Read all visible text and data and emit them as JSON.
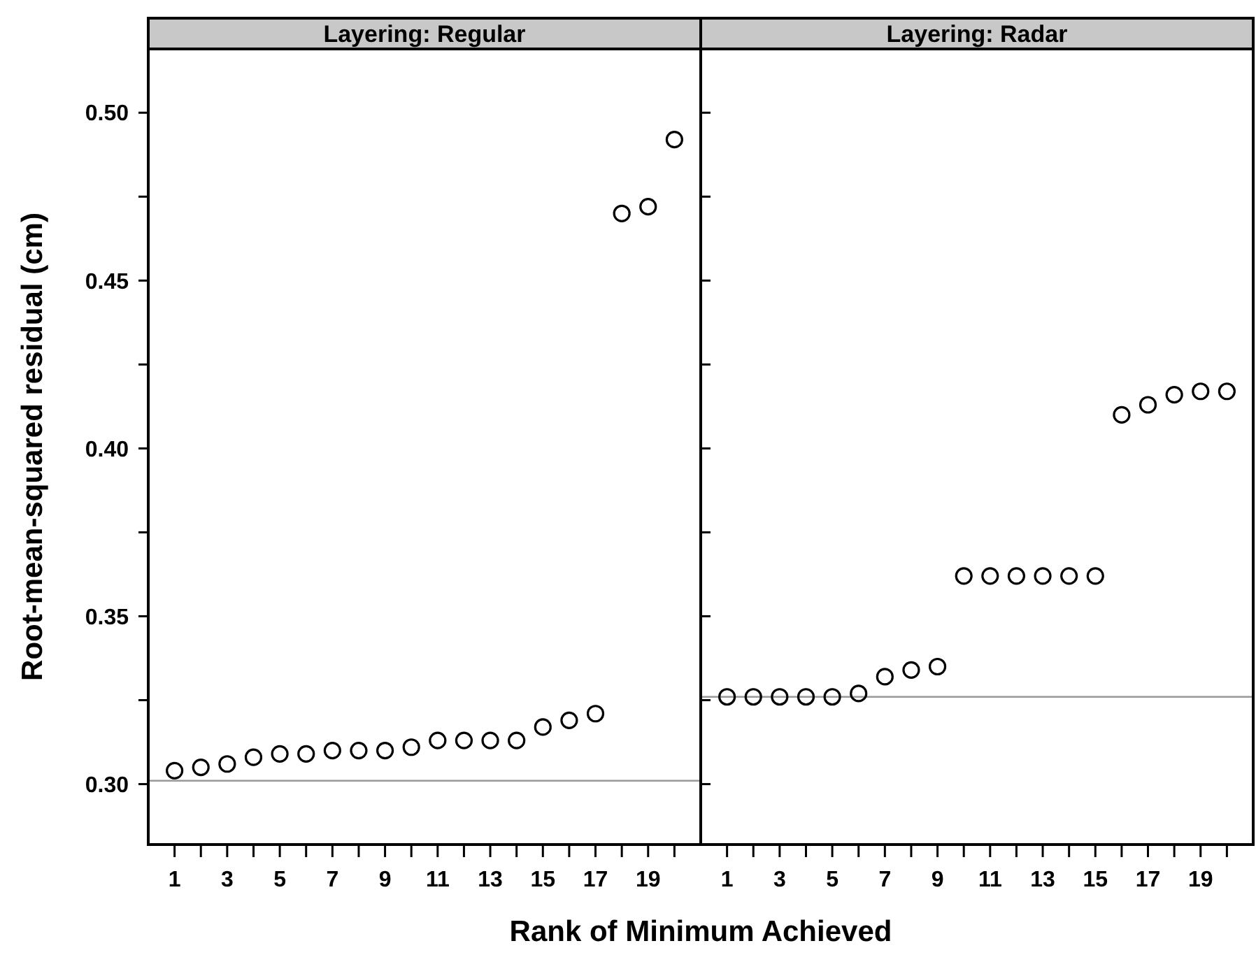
{
  "chart_data": [
    {
      "type": "scatter",
      "title": "Layering: Regular",
      "xlabel": "Rank of Minimum Achieved",
      "ylabel": "Root-mean-squared residual (cm)",
      "marker": "circle",
      "grid": false,
      "x": [
        1,
        2,
        3,
        4,
        5,
        6,
        7,
        8,
        9,
        10,
        11,
        12,
        13,
        14,
        15,
        16,
        17,
        18,
        19,
        20
      ],
      "series": [
        {
          "color": "#000000",
          "values": [
            0.304,
            0.305,
            0.306,
            0.308,
            0.309,
            0.309,
            0.31,
            0.31,
            0.31,
            0.311,
            0.313,
            0.313,
            0.313,
            0.313,
            0.317,
            0.319,
            0.321,
            0.47,
            0.472,
            0.492
          ]
        }
      ],
      "ref_lines": [
        {
          "axis": "y",
          "value": 0.301,
          "color": "#999999"
        }
      ],
      "xlim": [
        0,
        21
      ],
      "ylim": [
        0.282,
        0.519
      ],
      "xticks": [
        1,
        {
          "value": 2,
          "label": null
        },
        3,
        {
          "value": 4,
          "label": null
        },
        5,
        {
          "value": 6,
          "label": null
        },
        7,
        {
          "value": 8,
          "label": null
        },
        9,
        {
          "value": 10,
          "label": null
        },
        11,
        {
          "value": 12,
          "label": null
        },
        13,
        {
          "value": 14,
          "label": null
        },
        15,
        {
          "value": 16,
          "label": null
        },
        17,
        {
          "value": 18,
          "label": null
        },
        19,
        {
          "value": 20,
          "label": null
        }
      ],
      "yticks": [
        {
          "value": 0.3,
          "label": "0.30"
        },
        {
          "value": 0.325,
          "label": null
        },
        {
          "value": 0.35,
          "label": "0.35"
        },
        {
          "value": 0.375,
          "label": null
        },
        {
          "value": 0.4,
          "label": "0.40"
        },
        {
          "value": 0.425,
          "label": null
        },
        {
          "value": 0.45,
          "label": "0.45"
        },
        {
          "value": 0.475,
          "label": null
        },
        {
          "value": 0.5,
          "label": "0.50"
        }
      ]
    },
    {
      "type": "scatter",
      "title": "Layering: Radar",
      "marker": "circle",
      "grid": false,
      "tick_labels": "x",
      "x": [
        1,
        2,
        3,
        4,
        5,
        6,
        7,
        8,
        9,
        10,
        11,
        12,
        13,
        14,
        15,
        16,
        17,
        18,
        19,
        20
      ],
      "series": [
        {
          "color": "#000000",
          "values": [
            0.326,
            0.326,
            0.326,
            0.326,
            0.326,
            0.327,
            0.332,
            0.334,
            0.335,
            0.362,
            0.362,
            0.362,
            0.362,
            0.362,
            0.362,
            0.41,
            0.413,
            0.416,
            0.417,
            0.417
          ]
        }
      ],
      "ref_lines": [
        {
          "axis": "y",
          "value": 0.326,
          "color": "#999999"
        }
      ],
      "xlim": [
        0,
        21
      ],
      "ylim": [
        0.282,
        0.519
      ],
      "xticks": [
        1,
        {
          "value": 2,
          "label": null
        },
        3,
        {
          "value": 4,
          "label": null
        },
        5,
        {
          "value": 6,
          "label": null
        },
        7,
        {
          "value": 8,
          "label": null
        },
        9,
        {
          "value": 10,
          "label": null
        },
        11,
        {
          "value": 12,
          "label": null
        },
        13,
        {
          "value": 14,
          "label": null
        },
        15,
        {
          "value": 16,
          "label": null
        },
        17,
        {
          "value": 18,
          "label": null
        },
        19,
        {
          "value": 20,
          "label": null
        }
      ],
      "yticks": [
        0.3,
        0.325,
        0.35,
        0.375,
        0.4,
        0.425,
        0.45,
        0.475,
        0.5
      ]
    }
  ]
}
